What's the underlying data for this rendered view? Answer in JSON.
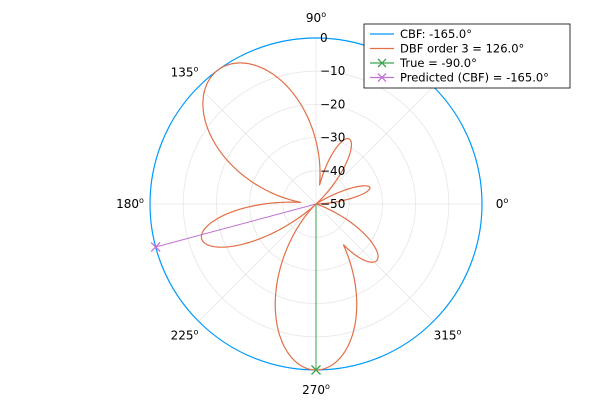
{
  "chart_data": {
    "type": "polar-line",
    "title": "",
    "r_axis": {
      "range": [
        -50,
        0
      ],
      "ticks": [
        0,
        -10,
        -20,
        -30,
        -40,
        -50
      ],
      "tick_labels": [
        "0",
        "−10",
        "−20",
        "−30",
        "−40",
        "−50"
      ]
    },
    "theta_ticks": [
      {
        "deg": 0,
        "label": "0",
        "sup": "o"
      },
      {
        "deg": 45,
        "label": "",
        "sup": ""
      },
      {
        "deg": 90,
        "label": "90",
        "sup": "o"
      },
      {
        "deg": 135,
        "label": "135",
        "sup": "o"
      },
      {
        "deg": 180,
        "label": "180",
        "sup": "o"
      },
      {
        "deg": 225,
        "label": "225",
        "sup": "o"
      },
      {
        "deg": 270,
        "label": "270",
        "sup": "o"
      },
      {
        "deg": 315,
        "label": "315",
        "sup": "o"
      }
    ],
    "grid": true,
    "legend": {
      "position": "top-right"
    },
    "series": [
      {
        "name": "CBF: -165.0°",
        "color": "#009AFA",
        "kind": "circle",
        "r_db": 0
      },
      {
        "name": "DBF order 3 = 126.0°",
        "color": "#E26F46",
        "kind": "pattern",
        "lobes": [
          {
            "center_deg": 126,
            "peak_db": 0,
            "halfwidth_deg": 30
          },
          {
            "center_deg": 162,
            "peak_db": -35,
            "halfwidth_deg": 8
          },
          {
            "center_deg": 197,
            "peak_db": -14,
            "halfwidth_deg": 15
          },
          {
            "center_deg": 270,
            "peak_db": 0,
            "halfwidth_deg": 26
          },
          {
            "center_deg": 317,
            "peak_db": -25,
            "halfwidth_deg": 14
          },
          {
            "center_deg": 17,
            "peak_db": -33,
            "halfwidth_deg": 9
          },
          {
            "center_deg": 63,
            "peak_db": -28,
            "halfwidth_deg": 12
          }
        ]
      },
      {
        "name": "True = -90.0°",
        "color": "#3DA44D",
        "kind": "ray",
        "theta_deg": -90,
        "r_db": 0
      },
      {
        "name": "Predicted (CBF) = -165.0°",
        "color": "#C271D2",
        "kind": "ray",
        "theta_deg": -165,
        "r_db": 0
      }
    ]
  }
}
